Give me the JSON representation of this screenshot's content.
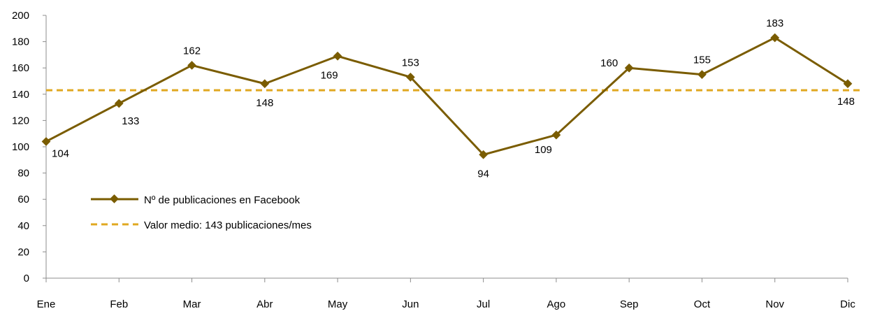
{
  "chart_data": {
    "type": "line",
    "categories": [
      "Ene",
      "Feb",
      "Mar",
      "Abr",
      "May",
      "Jun",
      "Jul",
      "Ago",
      "Sep",
      "Oct",
      "Nov",
      "Dic"
    ],
    "series": [
      {
        "name": "Nº de publicaciones en Facebook",
        "values": [
          104,
          133,
          162,
          148,
          169,
          153,
          94,
          109,
          160,
          155,
          183,
          148
        ],
        "color": "#7a5c00",
        "marker": "diamond"
      },
      {
        "name": "Valor medio: 143 publicaciones/mes",
        "constant": 143,
        "color": "#e0a820",
        "style": "dashed"
      }
    ],
    "ylim": [
      0,
      200
    ],
    "yticks": [
      0,
      20,
      40,
      60,
      80,
      100,
      120,
      140,
      160,
      180,
      200
    ],
    "grid": false,
    "legend_position": "lower-left",
    "data_labels": true
  }
}
